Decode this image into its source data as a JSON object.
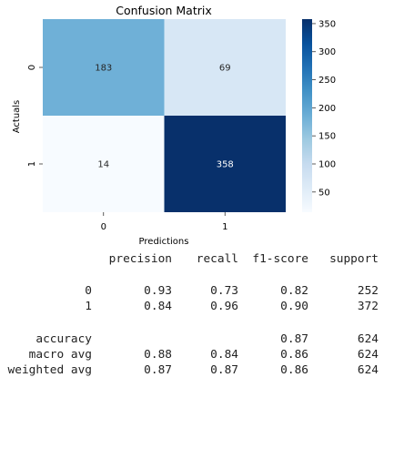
{
  "chart_data": {
    "type": "heatmap",
    "title": "Confusion Matrix",
    "xlabel": "Predictions",
    "ylabel": "Actuals",
    "x_categories": [
      "0",
      "1"
    ],
    "y_categories": [
      "0",
      "1"
    ],
    "values": [
      [
        183,
        69
      ],
      [
        14,
        358
      ]
    ],
    "colormap": "Blues",
    "colorbar_range": [
      14,
      358
    ],
    "colorbar_ticks": [
      50,
      100,
      150,
      200,
      250,
      300,
      350
    ]
  },
  "report": {
    "headers": [
      "precision",
      "recall",
      "f1-score",
      "support"
    ],
    "rows": [
      {
        "label": "0",
        "precision": "0.93",
        "recall": "0.73",
        "f1": "0.82",
        "support": "252"
      },
      {
        "label": "1",
        "precision": "0.84",
        "recall": "0.96",
        "f1": "0.90",
        "support": "372"
      }
    ],
    "summary": [
      {
        "label": "accuracy",
        "precision": "",
        "recall": "",
        "f1": "0.87",
        "support": "624"
      },
      {
        "label": "macro avg",
        "precision": "0.88",
        "recall": "0.84",
        "f1": "0.86",
        "support": "624"
      },
      {
        "label": "weighted avg",
        "precision": "0.87",
        "recall": "0.87",
        "f1": "0.86",
        "support": "624"
      }
    ]
  }
}
